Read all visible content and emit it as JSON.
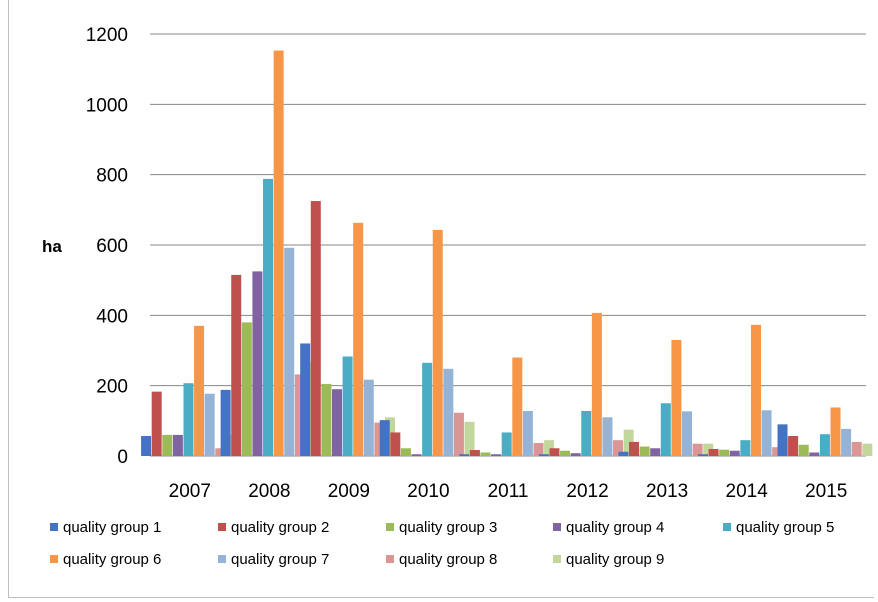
{
  "chart_data": {
    "type": "bar",
    "title": "",
    "xlabel": "",
    "ylabel": "ha",
    "ylim": [
      0,
      1200
    ],
    "yticks": [
      0,
      200,
      400,
      600,
      800,
      1000,
      1200
    ],
    "grid": true,
    "legend_position": "bottom",
    "categories": [
      "2007",
      "2008",
      "2009",
      "2010",
      "2011",
      "2012",
      "2013",
      "2014",
      "2015"
    ],
    "series": [
      {
        "name": "quality group 1",
        "color": "#4472c4",
        "values": [
          57,
          188,
          320,
          102,
          5,
          5,
          12,
          5,
          90
        ]
      },
      {
        "name": "quality group 2",
        "color": "#c0504d",
        "values": [
          183,
          515,
          725,
          67,
          17,
          22,
          40,
          20,
          57
        ]
      },
      {
        "name": "quality group 3",
        "color": "#9bbb59",
        "values": [
          60,
          380,
          205,
          22,
          10,
          15,
          27,
          18,
          32
        ]
      },
      {
        "name": "quality group 4",
        "color": "#8064a2",
        "values": [
          60,
          525,
          190,
          5,
          5,
          8,
          22,
          15,
          10
        ]
      },
      {
        "name": "quality group 5",
        "color": "#4bacc6",
        "values": [
          207,
          788,
          283,
          265,
          67,
          128,
          150,
          45,
          62
        ]
      },
      {
        "name": "quality group 6",
        "color": "#f79646",
        "values": [
          370,
          1153,
          663,
          643,
          280,
          407,
          330,
          373,
          138
        ]
      },
      {
        "name": "quality group 7",
        "color": "#95b3d7",
        "values": [
          177,
          592,
          217,
          248,
          128,
          110,
          127,
          130,
          77
        ]
      },
      {
        "name": "quality group 8",
        "color": "#d99694",
        "values": [
          22,
          232,
          95,
          123,
          37,
          45,
          35,
          25,
          40
        ]
      },
      {
        "name": "quality group 9",
        "color": "#c3d69b",
        "values": [
          60,
          268,
          110,
          97,
          45,
          75,
          35,
          52,
          35
        ]
      }
    ]
  }
}
